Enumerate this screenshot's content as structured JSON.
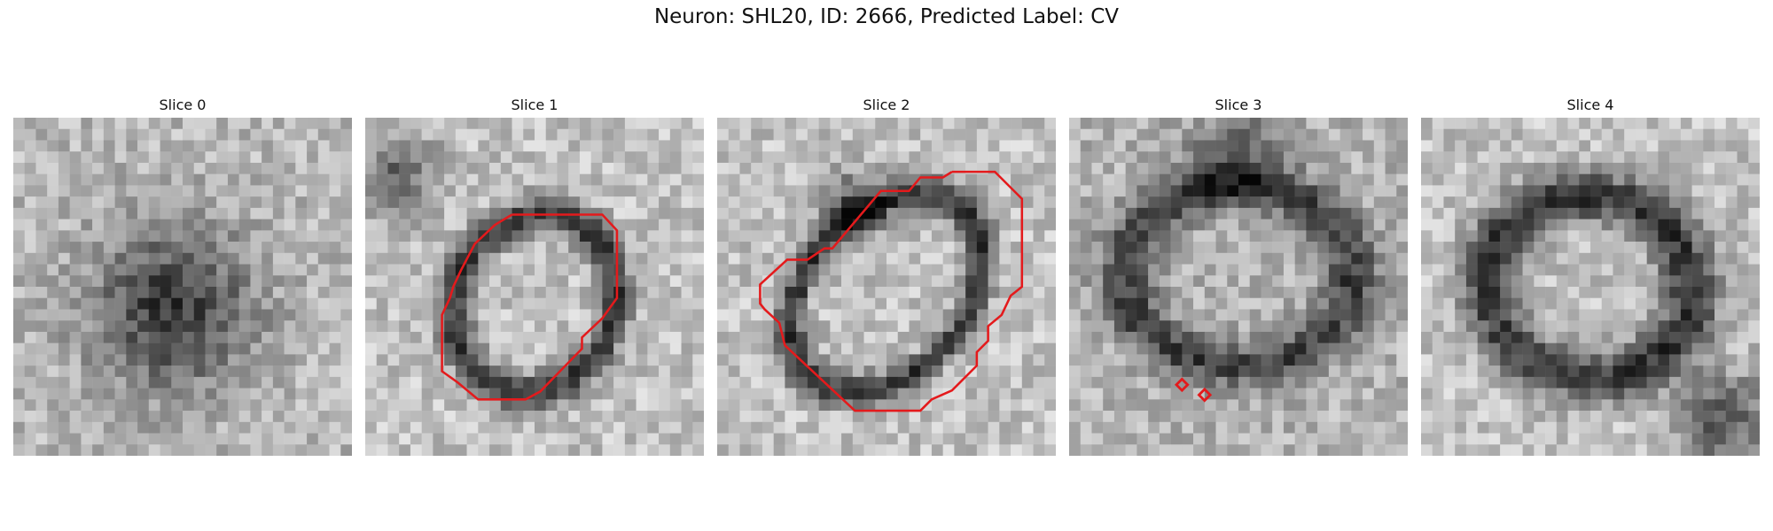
{
  "figure": {
    "title": "Neuron: SHL20, ID: 2666, Predicted Label: CV"
  },
  "panels": [
    {
      "title": "Slice 0"
    },
    {
      "title": "Slice 1"
    },
    {
      "title": "Slice 2"
    },
    {
      "title": "Slice 3"
    },
    {
      "title": "Slice 4"
    }
  ],
  "colors": {
    "contour": "#e41a1c",
    "background": "#ffffff"
  }
}
